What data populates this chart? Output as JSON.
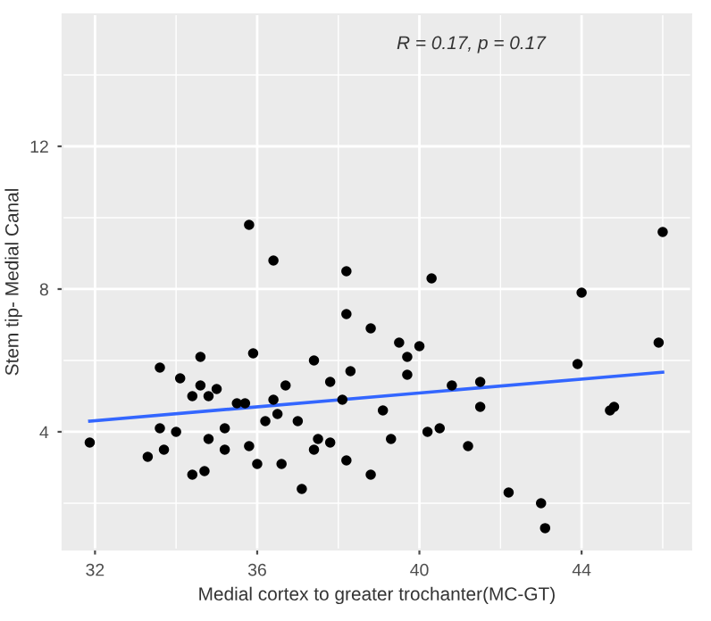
{
  "chart_data": {
    "type": "scatter",
    "xlabel": "Medial cortex to greater trochanter(MC-GT)",
    "ylabel": "Stem tip- Medial Canal",
    "annotations": [
      "R = 0.17, p = 0.17"
    ],
    "xlim": [
      31.2,
      46.7
    ],
    "ylim": [
      0.7,
      15.7
    ],
    "xticks": [
      32,
      36,
      40,
      44
    ],
    "yticks": [
      4,
      8,
      12
    ],
    "grid": true,
    "series": [
      {
        "marker": "circle",
        "color": "#000000",
        "x": [
          31.87,
          38.2,
          38.8,
          39.5,
          40.0,
          33.6,
          34.6,
          35.9,
          37.4,
          39.7,
          43.9,
          45.9,
          34.1,
          34.6,
          35.0,
          34.4,
          34.8,
          38.3,
          39.7,
          37.8,
          36.7,
          40.8,
          41.5,
          35.5,
          35.7,
          36.4,
          38.1,
          36.5,
          39.1,
          41.5,
          36.2,
          37.0,
          44.7,
          44.8,
          33.6,
          34.0,
          35.2,
          40.2,
          40.5,
          34.8,
          37.5,
          37.8,
          39.3,
          35.8,
          33.7,
          35.2,
          37.4,
          41.2,
          33.3,
          36.0,
          36.6,
          38.2,
          34.4,
          34.7,
          38.8,
          37.1,
          42.2,
          43.0,
          43.1,
          35.8,
          36.4,
          38.2,
          40.3,
          44.0,
          46.0
        ],
        "values": [
          3.7,
          7.3,
          6.9,
          6.5,
          6.4,
          5.8,
          6.1,
          6.2,
          6.0,
          6.1,
          5.9,
          6.5,
          5.5,
          5.3,
          5.2,
          5.0,
          5.0,
          5.7,
          5.6,
          5.4,
          5.3,
          5.3,
          5.4,
          4.8,
          4.8,
          4.9,
          4.9,
          4.5,
          4.6,
          4.7,
          4.3,
          4.3,
          4.6,
          4.7,
          4.1,
          4.0,
          4.1,
          4.0,
          4.1,
          3.8,
          3.8,
          3.7,
          3.8,
          3.6,
          3.5,
          3.5,
          3.5,
          3.6,
          3.3,
          3.1,
          3.1,
          3.2,
          2.8,
          2.9,
          2.8,
          2.4,
          2.3,
          2.0,
          1.3,
          9.8,
          8.8,
          8.5,
          8.3,
          7.9,
          9.6
        ]
      },
      {
        "type": "line",
        "color": "#3366ff",
        "x": [
          31.87,
          46.0
        ],
        "values": [
          4.3,
          5.67
        ]
      }
    ]
  }
}
